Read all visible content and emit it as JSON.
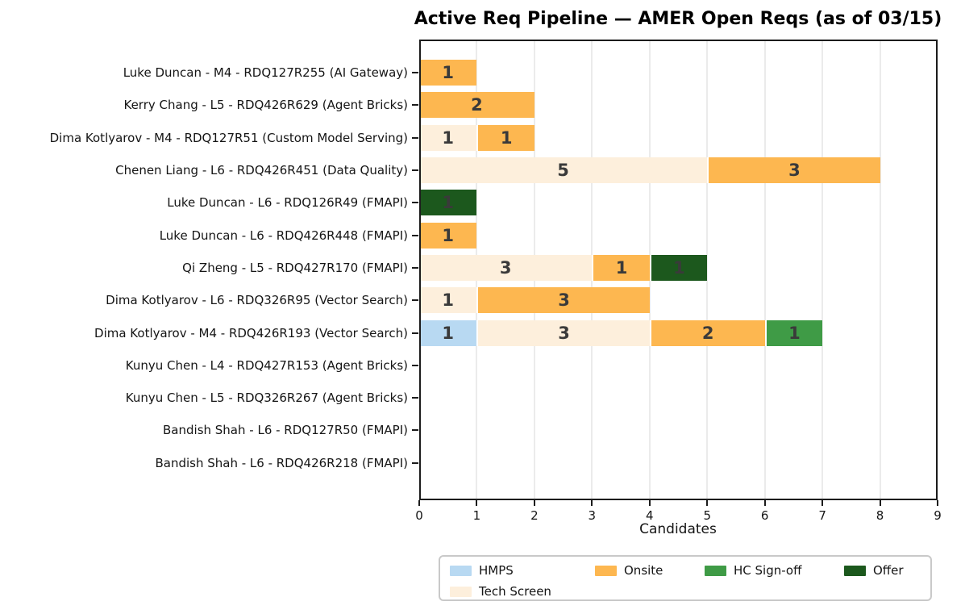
{
  "chart_data": {
    "type": "bar",
    "orientation": "horizontal",
    "stacked": true,
    "title": "Active Req Pipeline — AMER Open Reqs (as of 03/15)",
    "xlabel": "Candidates",
    "xlim": [
      0,
      9
    ],
    "x_ticks": [
      0,
      1,
      2,
      3,
      4,
      5,
      6,
      7,
      8,
      9
    ],
    "grid": "vertical",
    "value_label_color": "#3a3a3a",
    "categories": [
      "Luke Duncan - M4 - RDQ127R255 (AI Gateway)",
      "Kerry Chang - L5 - RDQ426R629 (Agent Bricks)",
      "Dima Kotlyarov - M4 - RDQ127R51 (Custom Model Serving)",
      "Chenen Liang - L6 - RDQ426R451 (Data Quality)",
      "Luke Duncan - L6 - RDQ126R49 (FMAPI)",
      "Luke Duncan - L6 - RDQ426R448 (FMAPI)",
      "Qi Zheng - L5 - RDQ427R170 (FMAPI)",
      "Dima Kotlyarov - L6 - RDQ326R95 (Vector Search)",
      "Dima Kotlyarov - M4 - RDQ426R193 (Vector Search)",
      "Kunyu Chen - L4 - RDQ427R153 (Agent Bricks)",
      "Kunyu Chen - L5 - RDQ326R267 (Agent Bricks)",
      "Bandish Shah - L6 - RDQ127R50 (FMAPI)",
      "Bandish Shah - L6 - RDQ426R218 (FMAPI)"
    ],
    "series": [
      {
        "name": "HMPS",
        "color": "#b8d9f2",
        "values": [
          0,
          0,
          0,
          0,
          0,
          0,
          0,
          0,
          1,
          0,
          0,
          0,
          0
        ]
      },
      {
        "name": "Tech Screen",
        "color": "#fdefdc",
        "values": [
          0,
          0,
          1,
          5,
          0,
          0,
          3,
          1,
          3,
          0,
          0,
          0,
          0
        ]
      },
      {
        "name": "Onsite",
        "color": "#fdb750",
        "values": [
          1,
          2,
          1,
          3,
          0,
          1,
          1,
          3,
          2,
          0,
          0,
          0,
          0
        ]
      },
      {
        "name": "HC Sign-off",
        "color": "#3f9b46",
        "values": [
          0,
          0,
          0,
          0,
          0,
          0,
          0,
          0,
          1,
          0,
          0,
          0,
          0
        ]
      },
      {
        "name": "Offer",
        "color": "#1c581d",
        "values": [
          0,
          0,
          0,
          0,
          1,
          0,
          1,
          0,
          0,
          0,
          0,
          0,
          0
        ]
      }
    ],
    "legend": {
      "position": "below-chart",
      "columns": [
        [
          "HMPS",
          "Tech Screen"
        ],
        [
          "Onsite"
        ],
        [
          "HC Sign-off"
        ],
        [
          "Offer"
        ]
      ]
    }
  }
}
